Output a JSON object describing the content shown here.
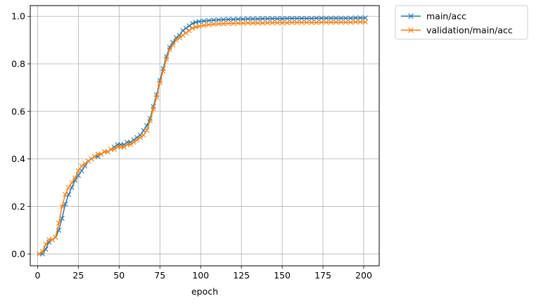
{
  "chart_data": {
    "type": "line",
    "title": "",
    "xlabel": "epoch",
    "ylabel": "",
    "xlim": [
      -4.5,
      209.5
    ],
    "ylim": [
      -0.05,
      1.045
    ],
    "xticks": [
      0,
      25,
      50,
      75,
      100,
      125,
      150,
      175,
      200
    ],
    "yticks": [
      0.0,
      0.2,
      0.4,
      0.6,
      0.8,
      1.0
    ],
    "xtick_labels": [
      "0",
      "25",
      "50",
      "75",
      "100",
      "125",
      "150",
      "175",
      "200"
    ],
    "ytick_labels": [
      "0.0",
      "0.2",
      "0.4",
      "0.6",
      "0.8",
      "1.0"
    ],
    "grid": true,
    "legend_position": "outside-top-right",
    "marker": "x",
    "series": [
      {
        "name": "main/acc",
        "color": "#1f77b4",
        "points": [
          [
            1,
            0.0
          ],
          [
            3,
            0.0
          ],
          [
            5,
            0.02
          ],
          [
            7,
            0.05
          ],
          [
            9,
            0.06
          ],
          [
            11,
            0.07
          ],
          [
            13,
            0.1
          ],
          [
            15,
            0.15
          ],
          [
            17,
            0.21
          ],
          [
            19,
            0.25
          ],
          [
            21,
            0.28
          ],
          [
            23,
            0.31
          ],
          [
            25,
            0.33
          ],
          [
            27,
            0.35
          ],
          [
            29,
            0.37
          ],
          [
            31,
            0.39
          ],
          [
            33,
            0.4
          ],
          [
            35,
            0.41
          ],
          [
            37,
            0.41
          ],
          [
            39,
            0.42
          ],
          [
            41,
            0.43
          ],
          [
            43,
            0.43
          ],
          [
            45,
            0.44
          ],
          [
            47,
            0.45
          ],
          [
            49,
            0.46
          ],
          [
            51,
            0.46
          ],
          [
            53,
            0.46
          ],
          [
            55,
            0.47
          ],
          [
            57,
            0.47
          ],
          [
            59,
            0.48
          ],
          [
            61,
            0.49
          ],
          [
            63,
            0.5
          ],
          [
            65,
            0.52
          ],
          [
            67,
            0.54
          ],
          [
            69,
            0.57
          ],
          [
            71,
            0.62
          ],
          [
            73,
            0.67
          ],
          [
            75,
            0.73
          ],
          [
            77,
            0.78
          ],
          [
            79,
            0.83
          ],
          [
            81,
            0.87
          ],
          [
            83,
            0.89
          ],
          [
            85,
            0.91
          ],
          [
            87,
            0.92
          ],
          [
            89,
            0.94
          ],
          [
            91,
            0.95
          ],
          [
            93,
            0.96
          ],
          [
            95,
            0.97
          ],
          [
            97,
            0.975
          ],
          [
            99,
            0.978
          ],
          [
            102,
            0.98
          ],
          [
            105,
            0.982
          ],
          [
            108,
            0.984
          ],
          [
            111,
            0.985
          ],
          [
            114,
            0.986
          ],
          [
            117,
            0.987
          ],
          [
            120,
            0.987
          ],
          [
            123,
            0.988
          ],
          [
            126,
            0.988
          ],
          [
            129,
            0.989
          ],
          [
            132,
            0.989
          ],
          [
            135,
            0.989
          ],
          [
            138,
            0.99
          ],
          [
            141,
            0.99
          ],
          [
            144,
            0.99
          ],
          [
            147,
            0.99
          ],
          [
            150,
            0.99
          ],
          [
            153,
            0.991
          ],
          [
            156,
            0.991
          ],
          [
            159,
            0.991
          ],
          [
            162,
            0.991
          ],
          [
            165,
            0.991
          ],
          [
            168,
            0.991
          ],
          [
            171,
            0.992
          ],
          [
            174,
            0.992
          ],
          [
            177,
            0.992
          ],
          [
            180,
            0.992
          ],
          [
            183,
            0.992
          ],
          [
            186,
            0.992
          ],
          [
            189,
            0.992
          ],
          [
            192,
            0.992
          ],
          [
            195,
            0.993
          ],
          [
            198,
            0.993
          ],
          [
            201,
            0.993
          ]
        ]
      },
      {
        "name": "validation/main/acc",
        "color": "#ff7f0e",
        "points": [
          [
            1,
            0.0
          ],
          [
            3,
            0.01
          ],
          [
            5,
            0.04
          ],
          [
            7,
            0.06
          ],
          [
            9,
            0.06
          ],
          [
            11,
            0.07
          ],
          [
            13,
            0.13
          ],
          [
            15,
            0.2
          ],
          [
            17,
            0.25
          ],
          [
            19,
            0.28
          ],
          [
            21,
            0.3
          ],
          [
            23,
            0.32
          ],
          [
            25,
            0.35
          ],
          [
            27,
            0.37
          ],
          [
            29,
            0.38
          ],
          [
            31,
            0.39
          ],
          [
            33,
            0.4
          ],
          [
            35,
            0.41
          ],
          [
            37,
            0.42
          ],
          [
            39,
            0.42
          ],
          [
            41,
            0.43
          ],
          [
            43,
            0.43
          ],
          [
            45,
            0.44
          ],
          [
            47,
            0.44
          ],
          [
            49,
            0.45
          ],
          [
            51,
            0.45
          ],
          [
            53,
            0.45
          ],
          [
            55,
            0.46
          ],
          [
            57,
            0.46
          ],
          [
            59,
            0.47
          ],
          [
            61,
            0.48
          ],
          [
            63,
            0.49
          ],
          [
            65,
            0.5
          ],
          [
            67,
            0.52
          ],
          [
            69,
            0.56
          ],
          [
            71,
            0.61
          ],
          [
            73,
            0.66
          ],
          [
            75,
            0.72
          ],
          [
            77,
            0.77
          ],
          [
            79,
            0.82
          ],
          [
            81,
            0.86
          ],
          [
            83,
            0.88
          ],
          [
            85,
            0.9
          ],
          [
            87,
            0.91
          ],
          [
            89,
            0.92
          ],
          [
            91,
            0.93
          ],
          [
            93,
            0.94
          ],
          [
            95,
            0.95
          ],
          [
            97,
            0.955
          ],
          [
            99,
            0.958
          ],
          [
            102,
            0.962
          ],
          [
            105,
            0.965
          ],
          [
            108,
            0.967
          ],
          [
            111,
            0.968
          ],
          [
            114,
            0.969
          ],
          [
            117,
            0.97
          ],
          [
            120,
            0.97
          ],
          [
            123,
            0.971
          ],
          [
            126,
            0.971
          ],
          [
            129,
            0.972
          ],
          [
            132,
            0.972
          ],
          [
            135,
            0.972
          ],
          [
            138,
            0.972
          ],
          [
            141,
            0.973
          ],
          [
            144,
            0.973
          ],
          [
            147,
            0.973
          ],
          [
            150,
            0.973
          ],
          [
            153,
            0.973
          ],
          [
            156,
            0.974
          ],
          [
            159,
            0.974
          ],
          [
            162,
            0.974
          ],
          [
            165,
            0.974
          ],
          [
            168,
            0.974
          ],
          [
            171,
            0.974
          ],
          [
            174,
            0.975
          ],
          [
            177,
            0.975
          ],
          [
            180,
            0.975
          ],
          [
            183,
            0.975
          ],
          [
            186,
            0.975
          ],
          [
            189,
            0.975
          ],
          [
            192,
            0.975
          ],
          [
            195,
            0.976
          ],
          [
            198,
            0.976
          ],
          [
            201,
            0.976
          ]
        ]
      }
    ]
  }
}
